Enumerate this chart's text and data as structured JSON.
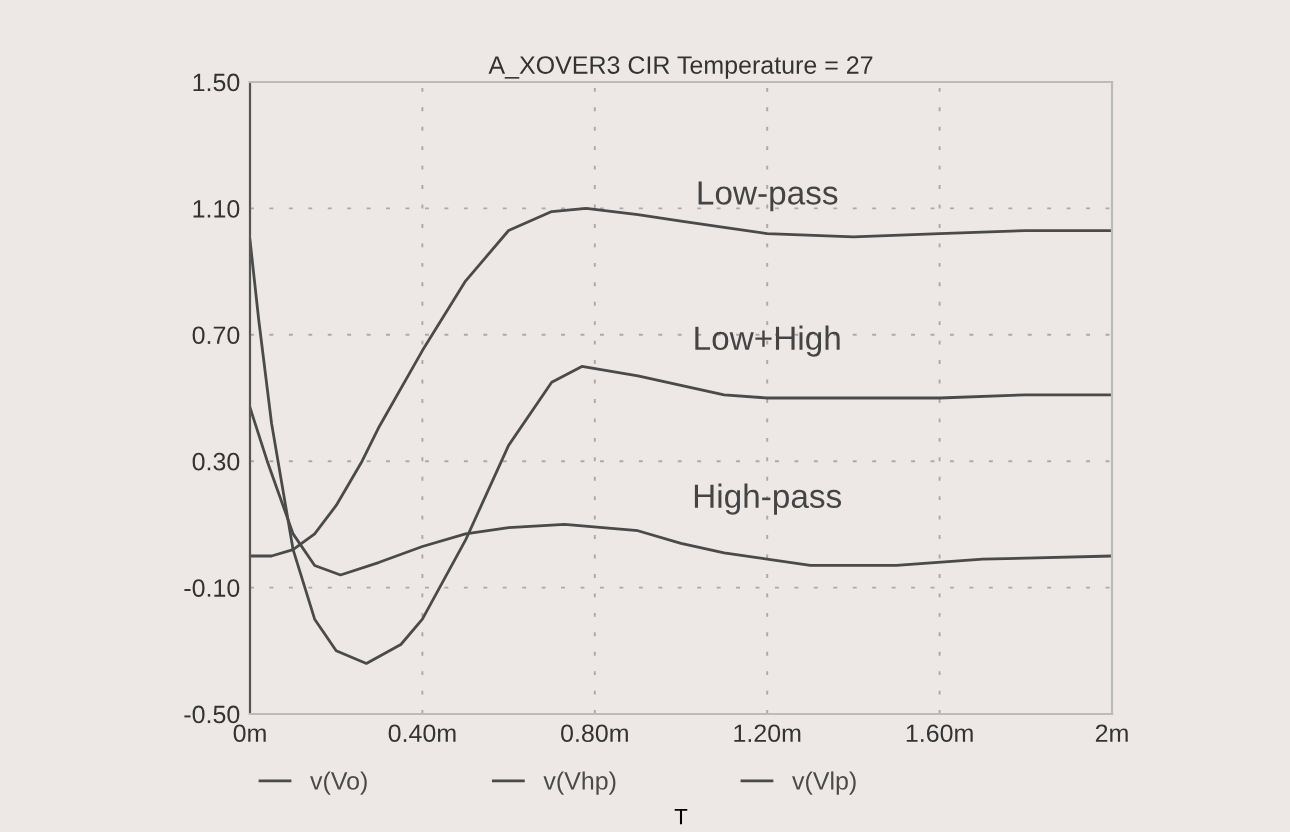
{
  "chart_data": {
    "type": "line",
    "title": "A_XOVER3 CIR Temperature = 27",
    "xlabel": "T",
    "xlim": [
      0,
      2
    ],
    "xticks": [
      {
        "value": 0,
        "label": "0m"
      },
      {
        "value": 0.4,
        "label": "0.40m"
      },
      {
        "value": 0.8,
        "label": "0.80m"
      },
      {
        "value": 1.2,
        "label": "1.20m"
      },
      {
        "value": 1.6,
        "label": "1.60m"
      },
      {
        "value": 2,
        "label": "2m"
      }
    ],
    "ylim": [
      -0.5,
      1.5
    ],
    "yticks": [
      {
        "value": -0.5,
        "label": "-0.50"
      },
      {
        "value": -0.1,
        "label": "-0.10"
      },
      {
        "value": 0.3,
        "label": "0.30"
      },
      {
        "value": 0.7,
        "label": "0.70"
      },
      {
        "value": 1.1,
        "label": "1.10"
      },
      {
        "value": 1.5,
        "label": "1.50"
      }
    ],
    "grid": true,
    "legend": "bottom",
    "series": [
      {
        "name": "v(Vo)",
        "color": "#4a4a4a",
        "x": [
          0,
          0.02,
          0.05,
          0.1,
          0.15,
          0.2,
          0.27,
          0.35,
          0.4,
          0.5,
          0.6,
          0.7,
          0.77,
          0.9,
          1.0,
          1.1,
          1.2,
          1.4,
          1.6,
          1.8,
          2.0
        ],
        "values": [
          1.0,
          0.75,
          0.42,
          0.02,
          -0.2,
          -0.3,
          -0.34,
          -0.28,
          -0.2,
          0.05,
          0.35,
          0.55,
          0.6,
          0.57,
          0.54,
          0.51,
          0.5,
          0.5,
          0.5,
          0.51,
          0.51
        ]
      },
      {
        "name": "v(Vhp)",
        "color": "#4a4a4a",
        "x": [
          0,
          0.04,
          0.1,
          0.15,
          0.21,
          0.3,
          0.4,
          0.5,
          0.6,
          0.73,
          0.9,
          1.0,
          1.1,
          1.3,
          1.5,
          1.7,
          2.0
        ],
        "values": [
          0.47,
          0.3,
          0.07,
          -0.03,
          -0.06,
          -0.02,
          0.03,
          0.07,
          0.09,
          0.1,
          0.08,
          0.04,
          0.01,
          -0.03,
          -0.03,
          -0.01,
          0.0
        ]
      },
      {
        "name": "v(Vlp)",
        "color": "#4a4a4a",
        "x": [
          0,
          0.05,
          0.1,
          0.15,
          0.2,
          0.26,
          0.3,
          0.4,
          0.5,
          0.6,
          0.7,
          0.78,
          0.9,
          1.0,
          1.1,
          1.2,
          1.4,
          1.6,
          1.8,
          2.0
        ],
        "values": [
          0.0,
          0.0,
          0.02,
          0.07,
          0.16,
          0.3,
          0.41,
          0.65,
          0.87,
          1.03,
          1.09,
          1.1,
          1.08,
          1.06,
          1.04,
          1.02,
          1.01,
          1.02,
          1.03,
          1.03
        ]
      }
    ],
    "annotations": [
      "Low-pass",
      "Low+High",
      "High-pass"
    ]
  }
}
